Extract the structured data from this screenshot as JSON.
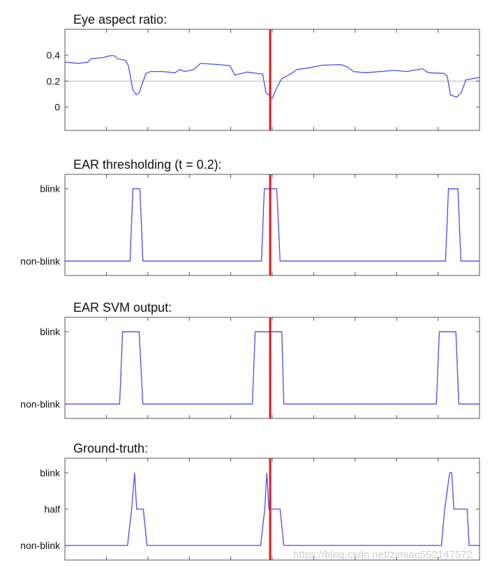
{
  "chart_data": [
    {
      "type": "line",
      "title": "Eye aspect ratio:",
      "xlim": [
        0,
        10
      ],
      "ylim": [
        -0.18,
        0.6
      ],
      "yticks": [
        {
          "v": 0.4,
          "label": "0.4"
        },
        {
          "v": 0.2,
          "label": "0.2"
        },
        {
          "v": 0,
          "label": "0"
        }
      ],
      "threshold_line": 0.2,
      "series": [
        {
          "name": "EAR",
          "x": [
            0,
            0.32,
            0.55,
            0.63,
            0.93,
            1.08,
            1.19,
            1.27,
            1.46,
            1.53,
            1.64,
            1.72,
            1.79,
            1.95,
            2.06,
            2.36,
            2.66,
            2.77,
            2.89,
            3.11,
            3.27,
            3.72,
            3.98,
            4.1,
            4.4,
            4.7,
            4.77,
            4.85,
            4.92,
            5.0,
            5.11,
            5.23,
            5.45,
            5.6,
            5.83,
            6.21,
            6.66,
            6.81,
            6.96,
            7.26,
            7.94,
            8.24,
            8.62,
            8.77,
            9.15,
            9.22,
            9.3,
            9.45,
            9.56,
            9.67,
            10
          ],
          "y": [
            0.346,
            0.337,
            0.346,
            0.373,
            0.382,
            0.396,
            0.396,
            0.373,
            0.36,
            0.319,
            0.13,
            0.094,
            0.11,
            0.256,
            0.274,
            0.274,
            0.265,
            0.29,
            0.274,
            0.29,
            0.337,
            0.328,
            0.319,
            0.247,
            0.27,
            0.256,
            0.256,
            0.112,
            0.094,
            0.067,
            0.148,
            0.22,
            0.256,
            0.29,
            0.3,
            0.323,
            0.328,
            0.31,
            0.274,
            0.265,
            0.283,
            0.274,
            0.296,
            0.265,
            0.26,
            0.238,
            0.094,
            0.076,
            0.112,
            0.21,
            0.229
          ]
        }
      ]
    },
    {
      "type": "line",
      "title": "EAR thresholding (t = 0.2):",
      "xlim": [
        0,
        10
      ],
      "ylim": [
        -0.2,
        1.2
      ],
      "yticks": [
        {
          "v": 1,
          "label": "blink"
        },
        {
          "v": 0,
          "label": "non-blink"
        }
      ],
      "series": [
        {
          "name": "threshold",
          "x": [
            0,
            1.57,
            1.64,
            1.81,
            1.88,
            4.74,
            4.81,
            5.11,
            5.19,
            9.18,
            9.25,
            9.48,
            9.55,
            10
          ],
          "y": [
            0,
            0,
            1,
            1,
            0,
            0,
            1,
            1,
            0,
            0,
            1,
            1,
            0,
            0
          ]
        }
      ]
    },
    {
      "type": "line",
      "title": "EAR SVM output:",
      "xlim": [
        0,
        10
      ],
      "ylim": [
        -0.2,
        1.2
      ],
      "yticks": [
        {
          "v": 1,
          "label": "blink"
        },
        {
          "v": 0,
          "label": "non-blink"
        }
      ],
      "series": [
        {
          "name": "svm",
          "x": [
            0,
            1.32,
            1.39,
            1.79,
            1.88,
            4.52,
            4.59,
            5.23,
            5.28,
            8.96,
            9.03,
            9.43,
            9.5,
            10
          ],
          "y": [
            0,
            0,
            1,
            1,
            0,
            0,
            1,
            1,
            0,
            0,
            1,
            1,
            0,
            0
          ]
        }
      ]
    },
    {
      "type": "line",
      "title": "Ground-truth:",
      "xlim": [
        0,
        10
      ],
      "ylim": [
        -0.2,
        1.2
      ],
      "yticks": [
        {
          "v": 1,
          "label": "blink"
        },
        {
          "v": 0.5,
          "label": "half"
        },
        {
          "v": 0,
          "label": "non-blink"
        }
      ],
      "series": [
        {
          "name": "ground-truth",
          "x": [
            0,
            1.51,
            1.61,
            1.68,
            1.73,
            1.89,
            1.98,
            4.72,
            4.82,
            4.87,
            4.92,
            5.19,
            5.28,
            9.08,
            9.16,
            9.28,
            9.33,
            9.38,
            9.7,
            9.75,
            10
          ],
          "y": [
            0,
            0,
            0.5,
            1,
            0.5,
            0.5,
            0,
            0,
            0.5,
            1,
            0.5,
            0.5,
            0,
            0,
            0.5,
            1,
            1,
            0.5,
            0.5,
            0,
            0
          ]
        }
      ]
    }
  ],
  "marker_x": 4.95,
  "xticks": [
    1,
    2,
    3,
    4,
    5,
    6,
    7,
    8,
    9
  ],
  "colors": {
    "series": "#4b4bf0",
    "marker": "#e8141c",
    "threshold": "#cccccc",
    "axis": "#555555"
  },
  "watermark": "https://blog.csdn.net/zimiao552147572"
}
